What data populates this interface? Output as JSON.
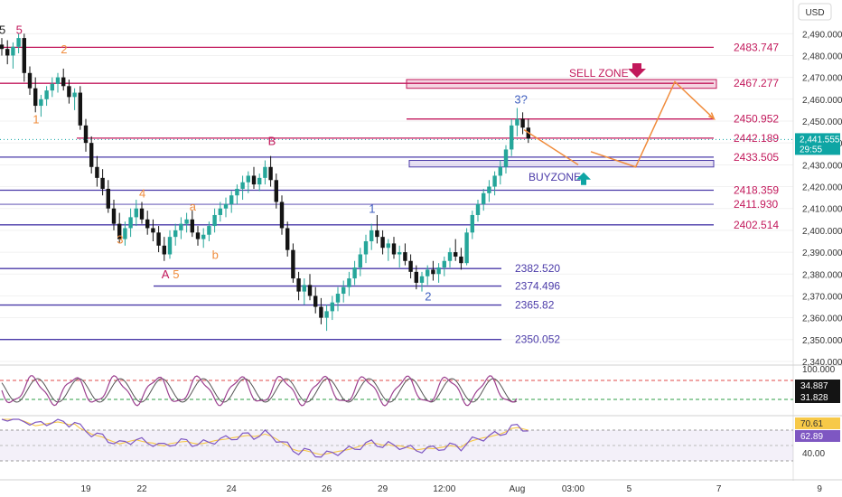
{
  "currency_label": "USD",
  "colors": {
    "up": "#26a69a",
    "down": "#141414",
    "pink": "#c2185b",
    "purple": "#4a3aa8",
    "orange": "#f08c3c",
    "blue_wave": "#3f5fbf",
    "osc1": "#9c3f8f",
    "osc2": "#555555",
    "rsi": "#7e57c2",
    "rsi_ma": "#f7c948",
    "last_price": "#0ea5a4"
  },
  "chart_data": {
    "type": "candlestick",
    "y_axis": {
      "ylim": [
        2340,
        2493
      ],
      "ticks": [
        "2,490.000",
        "2,480.000",
        "2,470.000",
        "2,460.000",
        "2,450.000",
        "2,440.000",
        "2,430.000",
        "2,420.000",
        "2,410.000",
        "2,400.000",
        "2,390.000",
        "2,380.000",
        "2,370.000",
        "2,360.000",
        "2,350.000",
        "2,340.000"
      ],
      "tick_values": [
        2490,
        2480,
        2470,
        2460,
        2450,
        2440,
        2430,
        2420,
        2410,
        2400,
        2390,
        2380,
        2370,
        2360,
        2350,
        2340
      ]
    },
    "x_axis": {
      "ticks": [
        "19",
        "22",
        "24",
        "26",
        "29",
        "12:00",
        "Aug",
        "03:00",
        "5",
        "7",
        "9"
      ],
      "tick_index": [
        15,
        25,
        41,
        58,
        68,
        79,
        92,
        102,
        112,
        128,
        146
      ]
    },
    "last_price": {
      "value": "2,441.555",
      "countdown": "29:55",
      "price": 2441.555
    },
    "levels_pink": [
      {
        "label": "2483.747",
        "price": 2483.747
      },
      {
        "label": "2467.277",
        "price": 2467.277
      },
      {
        "label": "2450.952",
        "price": 2450.952
      },
      {
        "label": "2442.189",
        "price": 2442.189
      },
      {
        "label": "2433.505",
        "price": 2433.505
      },
      {
        "label": "2418.359",
        "price": 2418.359
      },
      {
        "label": "2411.930",
        "price": 2411.93
      },
      {
        "label": "2402.514",
        "price": 2402.514
      }
    ],
    "levels_purple": [
      {
        "label": "2382.520",
        "price": 2382.52
      },
      {
        "label": "2374.496",
        "price": 2374.496
      },
      {
        "label": "2365.82",
        "price": 2365.82
      },
      {
        "label": "2350.052",
        "price": 2350.052
      }
    ],
    "zones": [
      {
        "label": "SELL ZONE",
        "top": 2469,
        "bottom": 2465,
        "kind": "sell"
      },
      {
        "label": "BUYZONE",
        "top": 2432,
        "bottom": 2429,
        "kind": "buy"
      }
    ],
    "wave_labels": [
      {
        "text": "5",
        "i": 0,
        "price": 2490,
        "color": "#222"
      },
      {
        "text": "5",
        "i": 3,
        "price": 2490,
        "color": "#c2185b"
      },
      {
        "text": "2",
        "i": 11,
        "price": 2481,
        "color": "#f08c3c"
      },
      {
        "text": "1",
        "i": 6,
        "price": 2449,
        "color": "#f08c3c"
      },
      {
        "text": "B",
        "i": 48,
        "price": 2439,
        "color": "#c2185b"
      },
      {
        "text": "4",
        "i": 25,
        "price": 2415,
        "color": "#f08c3c"
      },
      {
        "text": "a",
        "i": 34,
        "price": 2409,
        "color": "#f08c3c"
      },
      {
        "text": "3",
        "i": 21,
        "price": 2394,
        "color": "#f08c3c"
      },
      {
        "text": "b",
        "i": 38,
        "price": 2387,
        "color": "#f08c3c"
      },
      {
        "text": "A",
        "i": 29,
        "price": 2378,
        "color": "#c2185b"
      },
      {
        "text": "5",
        "i": 31,
        "price": 2378,
        "color": "#f08c3c"
      },
      {
        "text": "1",
        "i": 66,
        "price": 2408,
        "color": "#3f5fbf"
      },
      {
        "text": "2",
        "i": 76,
        "price": 2368,
        "color": "#3f5fbf"
      },
      {
        "text": "3?",
        "i": 92,
        "price": 2458,
        "color": "#3f5fbf"
      }
    ],
    "candles": [
      [
        2485,
        2488,
        2480,
        2483
      ],
      [
        2483,
        2487,
        2476,
        2480
      ],
      [
        2480,
        2486,
        2474,
        2484
      ],
      [
        2484,
        2490,
        2481,
        2488
      ],
      [
        2488,
        2490,
        2468,
        2472
      ],
      [
        2472,
        2475,
        2462,
        2465
      ],
      [
        2465,
        2470,
        2454,
        2457
      ],
      [
        2457,
        2462,
        2452,
        2460
      ],
      [
        2460,
        2466,
        2457,
        2464
      ],
      [
        2464,
        2470,
        2461,
        2467
      ],
      [
        2467,
        2472,
        2463,
        2470
      ],
      [
        2470,
        2474,
        2464,
        2466
      ],
      [
        2466,
        2469,
        2458,
        2461
      ],
      [
        2461,
        2465,
        2455,
        2463
      ],
      [
        2463,
        2466,
        2446,
        2448
      ],
      [
        2448,
        2451,
        2436,
        2440
      ],
      [
        2440,
        2443,
        2426,
        2429
      ],
      [
        2429,
        2434,
        2420,
        2424
      ],
      [
        2424,
        2428,
        2416,
        2419
      ],
      [
        2419,
        2423,
        2408,
        2410
      ],
      [
        2410,
        2414,
        2400,
        2403
      ],
      [
        2403,
        2408,
        2394,
        2396
      ],
      [
        2396,
        2404,
        2393,
        2401
      ],
      [
        2401,
        2410,
        2397,
        2406
      ],
      [
        2406,
        2414,
        2402,
        2410
      ],
      [
        2410,
        2413,
        2403,
        2405
      ],
      [
        2405,
        2409,
        2398,
        2401
      ],
      [
        2401,
        2405,
        2395,
        2399
      ],
      [
        2399,
        2402,
        2390,
        2393
      ],
      [
        2393,
        2397,
        2386,
        2389
      ],
      [
        2389,
        2400,
        2387,
        2397
      ],
      [
        2397,
        2403,
        2393,
        2400
      ],
      [
        2400,
        2406,
        2396,
        2403
      ],
      [
        2403,
        2408,
        2399,
        2405
      ],
      [
        2405,
        2409,
        2397,
        2399
      ],
      [
        2399,
        2402,
        2393,
        2396
      ],
      [
        2396,
        2401,
        2392,
        2398
      ],
      [
        2398,
        2404,
        2395,
        2402
      ],
      [
        2402,
        2410,
        2399,
        2407
      ],
      [
        2407,
        2413,
        2404,
        2410
      ],
      [
        2410,
        2415,
        2406,
        2412
      ],
      [
        2412,
        2418,
        2408,
        2416
      ],
      [
        2416,
        2421,
        2412,
        2419
      ],
      [
        2419,
        2425,
        2414,
        2422
      ],
      [
        2422,
        2427,
        2417,
        2425
      ],
      [
        2425,
        2429,
        2419,
        2421
      ],
      [
        2421,
        2426,
        2418,
        2424
      ],
      [
        2424,
        2432,
        2421,
        2429
      ],
      [
        2429,
        2434,
        2420,
        2423
      ],
      [
        2423,
        2426,
        2410,
        2413
      ],
      [
        2413,
        2416,
        2398,
        2401
      ],
      [
        2401,
        2404,
        2388,
        2391
      ],
      [
        2391,
        2394,
        2376,
        2378
      ],
      [
        2378,
        2381,
        2368,
        2372
      ],
      [
        2372,
        2378,
        2366,
        2375
      ],
      [
        2375,
        2380,
        2368,
        2370
      ],
      [
        2370,
        2374,
        2362,
        2365
      ],
      [
        2365,
        2369,
        2357,
        2360
      ],
      [
        2360,
        2366,
        2354,
        2363
      ],
      [
        2363,
        2370,
        2359,
        2367
      ],
      [
        2367,
        2374,
        2363,
        2371
      ],
      [
        2371,
        2377,
        2367,
        2374
      ],
      [
        2374,
        2381,
        2370,
        2378
      ],
      [
        2378,
        2386,
        2375,
        2383
      ],
      [
        2383,
        2392,
        2379,
        2389
      ],
      [
        2389,
        2398,
        2385,
        2395
      ],
      [
        2395,
        2403,
        2391,
        2400
      ],
      [
        2400,
        2407,
        2394,
        2397
      ],
      [
        2397,
        2400,
        2389,
        2392
      ],
      [
        2392,
        2396,
        2386,
        2394
      ],
      [
        2394,
        2397,
        2387,
        2389
      ],
      [
        2389,
        2393,
        2383,
        2390
      ],
      [
        2390,
        2394,
        2384,
        2386
      ],
      [
        2386,
        2389,
        2378,
        2381
      ],
      [
        2381,
        2384,
        2373,
        2376
      ],
      [
        2376,
        2381,
        2372,
        2379
      ],
      [
        2379,
        2384,
        2375,
        2382
      ],
      [
        2382,
        2386,
        2377,
        2380
      ],
      [
        2380,
        2385,
        2376,
        2383
      ],
      [
        2383,
        2388,
        2379,
        2386
      ],
      [
        2386,
        2392,
        2383,
        2390
      ],
      [
        2390,
        2396,
        2386,
        2388
      ],
      [
        2388,
        2392,
        2382,
        2385
      ],
      [
        2385,
        2401,
        2384,
        2399
      ],
      [
        2399,
        2409,
        2396,
        2407
      ],
      [
        2407,
        2414,
        2404,
        2412
      ],
      [
        2412,
        2419,
        2409,
        2417
      ],
      [
        2417,
        2423,
        2413,
        2420
      ],
      [
        2420,
        2427,
        2416,
        2425
      ],
      [
        2425,
        2432,
        2421,
        2429
      ],
      [
        2429,
        2439,
        2426,
        2437
      ],
      [
        2437,
        2451,
        2434,
        2448
      ],
      [
        2448,
        2456,
        2443,
        2451
      ],
      [
        2451,
        2454,
        2444,
        2447
      ],
      [
        2447,
        2451,
        2440,
        2442
      ]
    ],
    "projection_arrow": [
      [
        120,
        2436
      ],
      [
        128,
        2429
      ],
      [
        135,
        2468
      ],
      [
        142,
        2451
      ]
    ],
    "orange_down_arrow": [
      [
        120,
        2446
      ],
      [
        128,
        2432
      ]
    ],
    "oscillator": {
      "levels": [
        "100.000",
        "34.887",
        "31.828"
      ]
    },
    "rsi": {
      "levels": [
        "70.61",
        "62.89",
        "40.00"
      ]
    }
  }
}
